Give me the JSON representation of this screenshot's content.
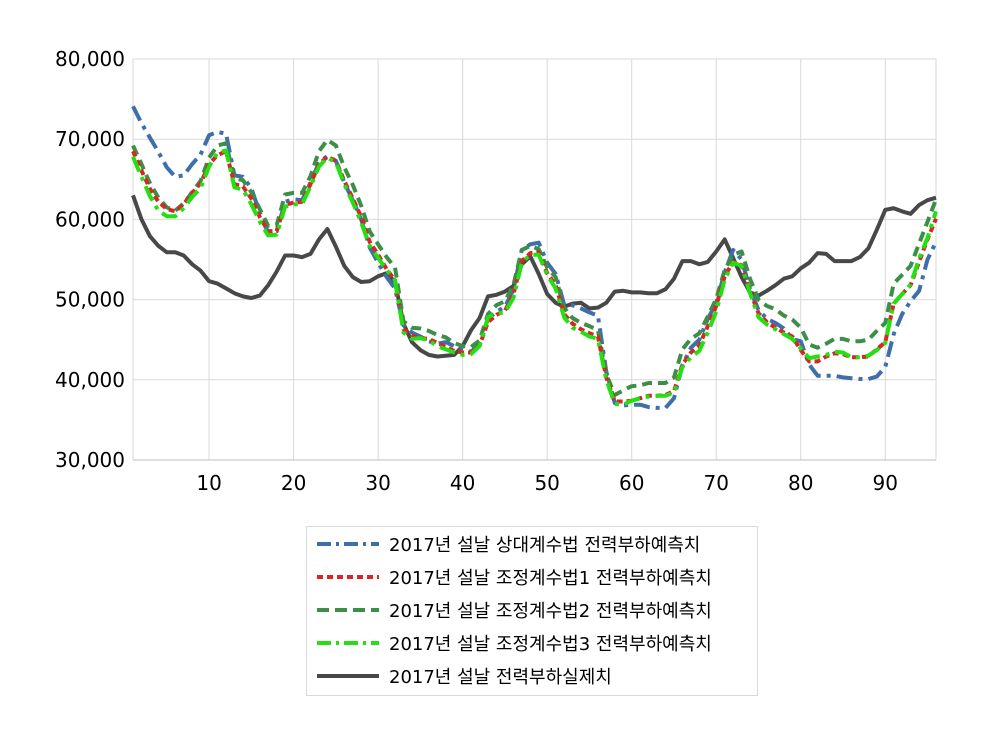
{
  "chart_data": {
    "type": "line",
    "ylim": [
      30000,
      80000
    ],
    "xlim": [
      1,
      96
    ],
    "y_ticks": [
      "30,000",
      "40,000",
      "50,000",
      "60,000",
      "70,000",
      "80,000"
    ],
    "y_tick_values": [
      30000,
      40000,
      50000,
      60000,
      70000,
      80000
    ],
    "x_ticks": [
      "10",
      "20",
      "30",
      "40",
      "50",
      "60",
      "70",
      "80",
      "90"
    ],
    "x_tick_values": [
      10,
      20,
      30,
      40,
      50,
      60,
      70,
      80,
      90
    ],
    "grid": true,
    "legend_position": "bottom",
    "x": [
      1,
      2,
      3,
      4,
      5,
      6,
      7,
      8,
      9,
      10,
      11,
      12,
      13,
      14,
      15,
      16,
      17,
      18,
      19,
      20,
      21,
      22,
      23,
      24,
      25,
      26,
      27,
      28,
      29,
      30,
      31,
      32,
      33,
      34,
      35,
      36,
      37,
      38,
      39,
      40,
      41,
      42,
      43,
      44,
      45,
      46,
      47,
      48,
      49,
      50,
      51,
      52,
      53,
      54,
      55,
      56,
      57,
      58,
      59,
      60,
      61,
      62,
      63,
      64,
      65,
      66,
      67,
      68,
      69,
      70,
      71,
      72,
      73,
      74,
      75,
      76,
      77,
      78,
      79,
      80,
      81,
      82,
      83,
      84,
      85,
      86,
      87,
      88,
      89,
      90,
      91,
      92,
      93,
      94,
      95,
      96
    ],
    "series": [
      {
        "name": "2017년 설날 상대계수법 전력부하예측치",
        "color": "#3f6fab",
        "style": "dashdot",
        "values": [
          74100,
          72000,
          70200,
          68400,
          66500,
          65300,
          65500,
          66900,
          68100,
          70500,
          70900,
          70700,
          65500,
          65300,
          63900,
          60800,
          58300,
          58500,
          62200,
          62500,
          62400,
          64600,
          67100,
          67900,
          67300,
          64600,
          62400,
          60000,
          56500,
          54600,
          52800,
          51400,
          46800,
          45900,
          45400,
          44800,
          44500,
          44700,
          44200,
          43900,
          43500,
          44400,
          47600,
          48500,
          49100,
          51200,
          56200,
          56900,
          57100,
          54600,
          53200,
          49400,
          49300,
          48900,
          48400,
          48000,
          41000,
          37100,
          36800,
          36900,
          36900,
          36600,
          36500,
          36500,
          37700,
          41800,
          44000,
          45000,
          47600,
          49600,
          53400,
          56200,
          55000,
          51300,
          48700,
          47600,
          47100,
          46400,
          45100,
          44800,
          41900,
          40500,
          40500,
          40500,
          40300,
          40200,
          40100,
          40100,
          40400,
          41600,
          45700,
          48200,
          49800,
          51100,
          55000,
          57200
        ]
      },
      {
        "name": "2017년 설날 조정계수법1 전력부하예측치",
        "color": "#d92525",
        "style": "dash",
        "values": [
          68500,
          66100,
          63800,
          62200,
          61300,
          61000,
          61900,
          63300,
          64500,
          66900,
          68000,
          68500,
          64400,
          64100,
          62600,
          60300,
          58500,
          58600,
          61800,
          62100,
          62200,
          64400,
          66900,
          67800,
          67300,
          64800,
          62600,
          60300,
          57200,
          55600,
          53800,
          52400,
          46300,
          45500,
          45200,
          45100,
          44600,
          44100,
          43600,
          43400,
          43400,
          44300,
          47200,
          48100,
          48600,
          50700,
          54800,
          55800,
          55900,
          53300,
          51800,
          48200,
          47000,
          46300,
          45800,
          45400,
          40300,
          37300,
          37300,
          37400,
          37700,
          38000,
          38000,
          38100,
          38600,
          41900,
          43400,
          44300,
          46700,
          49200,
          52900,
          54700,
          54300,
          51000,
          48300,
          47200,
          46500,
          45900,
          45400,
          43700,
          42300,
          42300,
          42900,
          43300,
          43200,
          42800,
          42800,
          42900,
          43800,
          44700,
          49500,
          50700,
          51800,
          54700,
          57500,
          60100
        ]
      },
      {
        "name": "2017년 설날 조정계수법2 전력부하예측치",
        "color": "#3c8f46",
        "style": "dash",
        "values": [
          69200,
          66900,
          64500,
          62700,
          61500,
          61100,
          62000,
          63400,
          64800,
          67700,
          69200,
          69500,
          65100,
          64900,
          63400,
          61300,
          59200,
          59300,
          63100,
          63300,
          63300,
          65400,
          68500,
          69900,
          69200,
          66500,
          64300,
          61700,
          58500,
          56900,
          55300,
          54000,
          47300,
          46500,
          46400,
          46100,
          45600,
          45300,
          44600,
          44200,
          44100,
          44900,
          48200,
          49300,
          49800,
          51800,
          56200,
          56700,
          56300,
          54000,
          52800,
          49000,
          47700,
          47100,
          46700,
          46200,
          40700,
          38100,
          38700,
          39200,
          39300,
          39600,
          39600,
          39600,
          40300,
          43800,
          45100,
          45800,
          47900,
          50100,
          53700,
          55600,
          56000,
          52600,
          50000,
          49200,
          48800,
          48000,
          47500,
          46500,
          44400,
          44000,
          44500,
          45100,
          45100,
          44800,
          44800,
          45000,
          46100,
          47100,
          52000,
          53100,
          54200,
          57000,
          59700,
          62500
        ]
      },
      {
        "name": "2017년 설날 조정계수법3 전력부하예측치",
        "color": "#22e011",
        "style": "dashdot",
        "values": [
          67800,
          65300,
          62900,
          61100,
          60400,
          60400,
          61400,
          62800,
          63900,
          66600,
          68300,
          68600,
          64000,
          63700,
          61900,
          59700,
          58000,
          58100,
          61600,
          61900,
          61900,
          64100,
          66600,
          67700,
          67100,
          64400,
          62100,
          59600,
          56700,
          55200,
          53700,
          52400,
          45900,
          45100,
          45200,
          44900,
          44200,
          43800,
          43400,
          43100,
          43200,
          44200,
          47800,
          48300,
          48400,
          50200,
          54600,
          55600,
          55600,
          53100,
          51400,
          47800,
          46500,
          46000,
          45400,
          45100,
          40000,
          37000,
          36900,
          37400,
          37700,
          37900,
          38000,
          38000,
          38400,
          41600,
          42800,
          43600,
          45900,
          48500,
          52500,
          54600,
          54200,
          50800,
          47800,
          46900,
          46300,
          45700,
          45100,
          43900,
          42700,
          42900,
          43100,
          43500,
          43400,
          42800,
          42800,
          43000,
          43700,
          44600,
          49500,
          50700,
          51900,
          55100,
          57700,
          61000
        ]
      },
      {
        "name": "2017년 설날 전력부하실제치",
        "color": "#484848",
        "style": "solid",
        "values": [
          63000,
          60000,
          57900,
          56700,
          55900,
          55900,
          55500,
          54400,
          53600,
          52300,
          52000,
          51400,
          50800,
          50400,
          50200,
          50500,
          51800,
          53500,
          55500,
          55500,
          55300,
          55700,
          57500,
          58800,
          56600,
          54200,
          52800,
          52200,
          52300,
          52900,
          53300,
          52200,
          47000,
          44700,
          43700,
          43100,
          42900,
          43000,
          43100,
          44200,
          46200,
          47700,
          50400,
          50600,
          51000,
          51700,
          54400,
          55400,
          53200,
          50700,
          49600,
          49100,
          49500,
          49600,
          48900,
          49000,
          49600,
          51000,
          51100,
          50900,
          50900,
          50800,
          50800,
          51300,
          52600,
          54800,
          54800,
          54400,
          54700,
          56000,
          57500,
          55200,
          52800,
          50900,
          50500,
          51100,
          51800,
          52600,
          52900,
          53900,
          54600,
          55800,
          55700,
          54800,
          54800,
          54800,
          55300,
          56400,
          58700,
          61200,
          61400,
          61000,
          60700,
          61800,
          62400,
          62700
        ]
      }
    ]
  }
}
